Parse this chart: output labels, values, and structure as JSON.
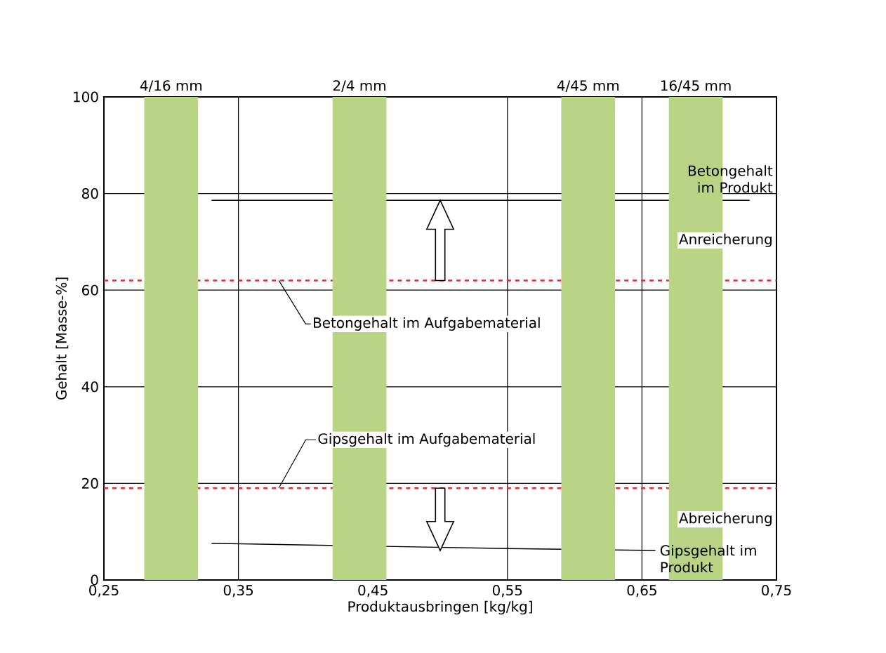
{
  "chart_data": {
    "type": "line",
    "xlabel": "Produktausbringen [kg/kg]",
    "ylabel": "Gehalt [Masse-%]",
    "xlim": [
      0.25,
      0.75
    ],
    "xticks": [
      {
        "value": 0.25,
        "label": "0,25"
      },
      {
        "value": 0.35,
        "label": "0,35"
      },
      {
        "value": 0.45,
        "label": "0,45"
      },
      {
        "value": 0.55,
        "label": "0,55"
      },
      {
        "value": 0.65,
        "label": "0,65"
      },
      {
        "value": 0.75,
        "label": "0,75"
      }
    ],
    "ylim": [
      0,
      100
    ],
    "yticks": [
      0,
      20,
      40,
      60,
      80,
      100
    ],
    "grid": true,
    "marker": "none",
    "series": [
      {
        "name": "Betongehalt im Produkt",
        "color": "#000000",
        "x": [
          0.33,
          0.73
        ],
        "values": [
          78.6,
          78.6
        ]
      },
      {
        "name": "Gipsgehalt im Produkt",
        "color": "#000000",
        "x": [
          0.33,
          0.55,
          0.66
        ],
        "values": [
          7.6,
          6.5,
          6.1
        ]
      }
    ],
    "ref_lines": [
      {
        "axis": "y",
        "value": 62,
        "label": "Betongehalt im Aufgabematerial",
        "color": "#e03030",
        "line_style": "dashed"
      },
      {
        "axis": "y",
        "value": 19,
        "label": "Gipsgehalt im Aufgabematerial",
        "color": "#e03030",
        "line_style": "dashed"
      }
    ],
    "bands": [
      {
        "axis": "x",
        "from": 0.28,
        "to": 0.32,
        "label": "4/16 mm",
        "color": "#b8d484"
      },
      {
        "axis": "x",
        "from": 0.42,
        "to": 0.46,
        "label": "2/4 mm",
        "color": "#b8d484"
      },
      {
        "axis": "x",
        "from": 0.59,
        "to": 0.63,
        "label": "4/45 mm",
        "color": "#b8d484"
      },
      {
        "axis": "x",
        "from": 0.67,
        "to": 0.71,
        "label": "16/45 mm",
        "color": "#b8d484"
      }
    ],
    "annotations": [
      "Anreicherung",
      "Abreicherung"
    ]
  }
}
